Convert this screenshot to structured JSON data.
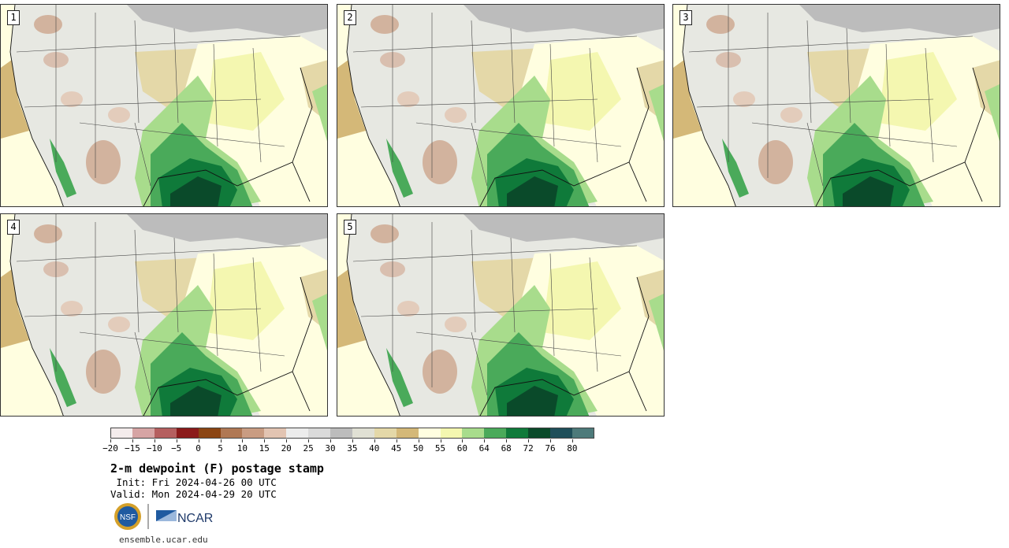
{
  "panels": [
    {
      "label": "1"
    },
    {
      "label": "2"
    },
    {
      "label": "3"
    },
    {
      "label": "4"
    },
    {
      "label": "5"
    }
  ],
  "colorbar": {
    "colors": [
      "#f4ecec",
      "#d6a4a4",
      "#b55f5f",
      "#8b1a1a",
      "#8b4513",
      "#b07854",
      "#c99c82",
      "#e2c4b2",
      "#ececec",
      "#dadada",
      "#bcbcbc",
      "#e0e0d4",
      "#e4d8a8",
      "#d4b878",
      "#fffee0",
      "#f4f7b0",
      "#a8dc8c",
      "#4aaa5a",
      "#0f7a3a",
      "#0a4a2a",
      "#1f4f5a",
      "#4d7a7a"
    ],
    "tick_labels": [
      "−20",
      "−15",
      "−10",
      "−5",
      "0",
      "5",
      "10",
      "15",
      "20",
      "25",
      "30",
      "35",
      "40",
      "45",
      "50",
      "55",
      "60",
      "64",
      "68",
      "72",
      "76",
      "80"
    ]
  },
  "title": "2-m dewpoint (F) postage stamp",
  "init": " Init: Fri 2024-04-26 00 UTC",
  "valid": "Valid: Mon 2024-04-29 20 UTC",
  "logos": {
    "nsf_text": "NSF",
    "ncar_text": "NCAR"
  },
  "site": "ensemble.ucar.edu"
}
